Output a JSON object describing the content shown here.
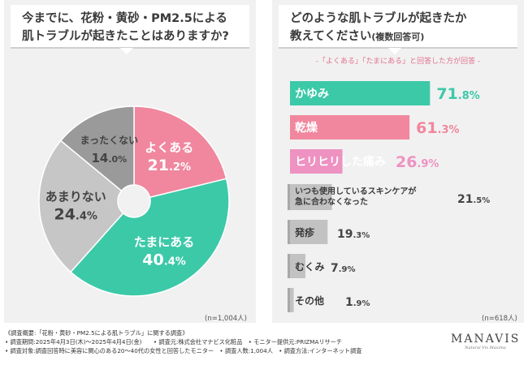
{
  "left_panel": {
    "title_line1": "今までに、花粉・黄砂・PM2.5による",
    "title_line2": "肌トラブルが起きたことはありますか?",
    "n_label": "(n=1,004人)"
  },
  "right_panel": {
    "title_line1": "どのような肌トラブルが起きたか",
    "title_line2_main": "教えてください",
    "title_line2_sub": "(複数回答可)",
    "note": "-「よくある」「たまにある」と回答した方が回答 -",
    "n_label": "(n=618人)"
  },
  "colors": {
    "pink": "#f0879e",
    "teal": "#3cc9a8",
    "gray_light": "#c6c6c6",
    "gray_mid": "#b7b7b7",
    "gray_dark": "#8f8f8f",
    "label_dark": "#444444"
  },
  "chart_data": [
    {
      "type": "pie",
      "title": "今までに、花粉・黄砂・PM2.5による肌トラブルが起きたことはありますか?",
      "unit": "%",
      "slices": [
        {
          "label": "よくある",
          "value": 21.2,
          "color": "#f0879e"
        },
        {
          "label": "たまにある",
          "value": 40.4,
          "color": "#3cc9a8"
        },
        {
          "label": "あまりない",
          "value": 24.4,
          "color": "#c6c6c6"
        },
        {
          "label": "まったくない",
          "value": 14.0,
          "color": "#9a9a9a"
        }
      ]
    },
    {
      "type": "bar",
      "orientation": "horizontal",
      "title": "どのような肌トラブルが起きたか教えてください(複数回答可)",
      "unit": "%",
      "xlim": [
        0,
        100
      ],
      "categories": [
        "かゆみ",
        "乾燥",
        "ヒリヒリした痛み",
        "いつも使用しているスキンケアが急に合わなくなった",
        "発疹",
        "むくみ",
        "その他"
      ],
      "category_lines": [
        [
          "かゆみ"
        ],
        [
          "乾燥"
        ],
        [
          "ヒリヒリした痛み"
        ],
        [
          "いつも使用しているスキンケアが",
          "急に合わなくなった"
        ],
        [
          "発疹"
        ],
        [
          "むくみ"
        ],
        [
          "その他"
        ]
      ],
      "values": [
        71.8,
        61.3,
        26.9,
        21.5,
        19.3,
        7.9,
        1.9
      ],
      "colors": [
        "#3cc9a8",
        "#f0879e",
        "#ee92c2",
        "#c2c2c2",
        "#c2c2c2",
        "#c2c2c2",
        "#c2c2c2"
      ]
    }
  ],
  "footer": {
    "line1": "《調査概要:「花粉・黄砂・PM2.5による肌トラブル」に関する調査》",
    "line2": "• 調査期間:2025年4月3日(木)〜2025年4月4日(金)　　• 調査元:株式会社マナビス化粧品　• モニター提供元:PRIZMAリサーチ",
    "line3": "• 調査対象:調査回答時に美容に関心のある20〜40代の女性と回答したモニター　• 調査人数:1,004人　• 調査方法:インターネット調査"
  },
  "logo": {
    "brand": "MANAVIS",
    "tagline": "Natural Vis Maxima"
  }
}
